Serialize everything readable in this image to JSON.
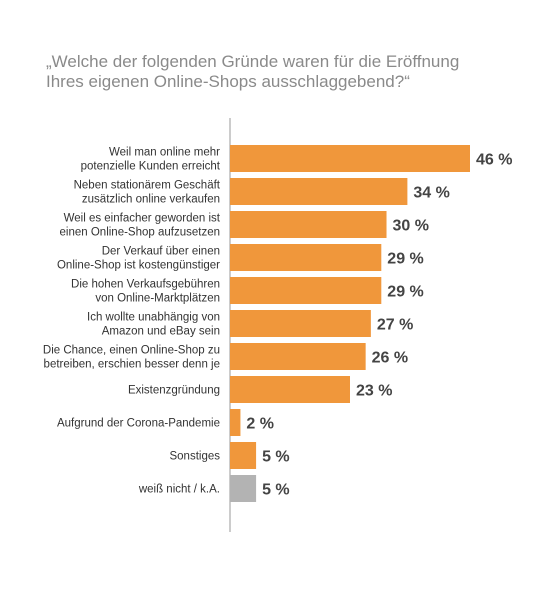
{
  "chart_data": {
    "type": "bar",
    "orientation": "horizontal",
    "title": [
      "„Welche der folgenden Gründe waren für die Eröffnung",
      "Ihres eigenen Online-Shops ausschlaggebend?“"
    ],
    "categories": [
      [
        "Weil man online mehr",
        "potenzielle Kunden erreicht"
      ],
      [
        "Neben stationärem Geschäft",
        "zusätzlich online verkaufen"
      ],
      [
        "Weil es einfacher geworden ist",
        "einen Online-Shop aufzusetzen"
      ],
      [
        "Der Verkauf über einen",
        "Online-Shop ist kostengünstiger"
      ],
      [
        "Die hohen Verkaufsgebühren",
        "von Online-Marktplätzen"
      ],
      [
        "Ich wollte unabhängig von",
        "Amazon und eBay sein"
      ],
      [
        "Die Chance, einen Online-Shop zu",
        "betreiben, erschien besser denn je"
      ],
      [
        "Existenzgründung"
      ],
      [
        "Aufgrund der Corona-Pandemie"
      ],
      [
        "Sonstiges"
      ],
      [
        "weiß nicht / k.A."
      ]
    ],
    "values": [
      46,
      34,
      30,
      29,
      29,
      27,
      26,
      23,
      2,
      5,
      5
    ],
    "value_labels": [
      "46 %",
      "34 %",
      "30 %",
      "29 %",
      "29 %",
      "27 %",
      "26 %",
      "23 %",
      "2 %",
      "5 %",
      "5 %"
    ],
    "bar_colors": [
      "#f0973b",
      "#f0973b",
      "#f0973b",
      "#f0973b",
      "#f0973b",
      "#f0973b",
      "#f0973b",
      "#f0973b",
      "#f0973b",
      "#f0973b",
      "#b3b3b3"
    ],
    "axis_color": "#999999",
    "xlim": [
      0,
      46
    ],
    "grid": false,
    "legend": "none"
  }
}
